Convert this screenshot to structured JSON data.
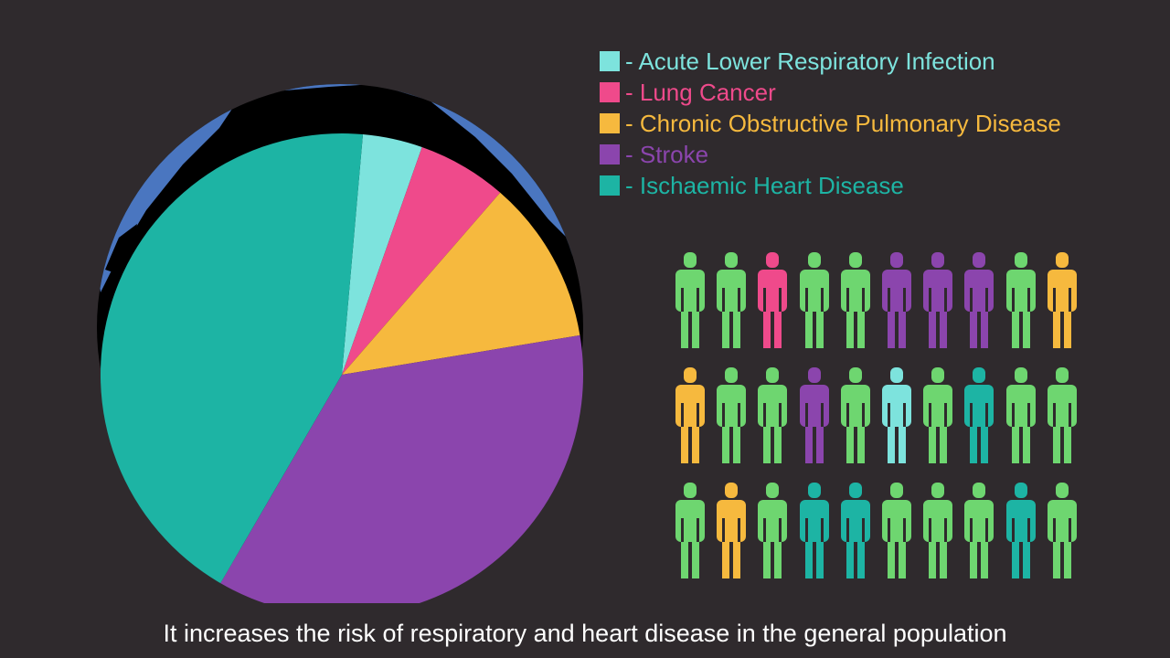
{
  "chart_data": {
    "type": "pie",
    "categories": [
      "Acute Lower Respiratory Infection",
      "Lung Cancer",
      "Chronic Obstructive Pulmonary Disease",
      "Stroke",
      "Ischaemic Heart Disease"
    ],
    "values": [
      4,
      6,
      11,
      36,
      43
    ],
    "colors": [
      "#7de3dd",
      "#ef4a8b",
      "#f6b93e",
      "#8b45ad",
      "#1db4a4"
    ],
    "legend_prefix": "- ",
    "legend_position": "top-right"
  },
  "legend": [
    {
      "label": "- Acute Lower Respiratory Infection",
      "color": "#7de3dd",
      "text_color": "#7de3dd"
    },
    {
      "label": "- Lung Cancer",
      "color": "#ef4a8b",
      "text_color": "#ef4a8b"
    },
    {
      "label": "- Chronic Obstructive Pulmonary Disease",
      "color": "#f6b93e",
      "text_color": "#f6b93e"
    },
    {
      "label": "- Stroke",
      "color": "#8b45ad",
      "text_color": "#8b45ad"
    },
    {
      "label": "- Ischaemic Heart Disease",
      "color": "#1db4a4",
      "text_color": "#1db4a4"
    }
  ],
  "people_grid": {
    "rows": [
      [
        "healthy",
        "healthy",
        "lung",
        "healthy",
        "healthy",
        "stroke",
        "stroke",
        "stroke",
        "healthy",
        "copd"
      ],
      [
        "copd",
        "healthy",
        "healthy",
        "stroke",
        "healthy",
        "alri",
        "healthy",
        "ihd",
        "healthy",
        "healthy"
      ],
      [
        "healthy",
        "copd",
        "healthy",
        "ihd",
        "ihd",
        "healthy",
        "healthy",
        "healthy",
        "ihd",
        "healthy"
      ]
    ],
    "colors": {
      "healthy": "#6ed670",
      "lung": "#ef4a8b",
      "copd": "#f6b93e",
      "stroke": "#8b45ad",
      "alri": "#7de3dd",
      "ihd": "#1db4a4"
    }
  },
  "globe": {
    "ocean_color": "#4a76c0",
    "land_color": "#000000",
    "icon": "globe-icon"
  },
  "caption": "It increases the risk of respiratory and heart disease in the general population",
  "background_color": "#2f2a2d"
}
